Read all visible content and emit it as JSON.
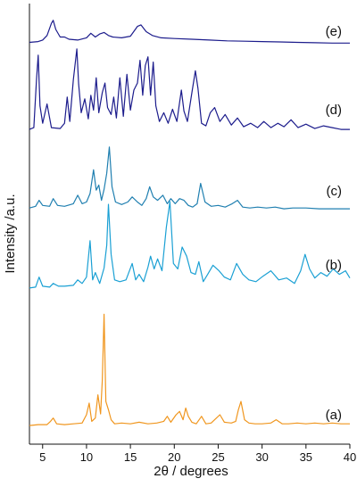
{
  "chart_data": {
    "type": "line",
    "xlabel": "2θ / degrees",
    "ylabel": "Intensity /a.u.",
    "xlim": [
      3.5,
      40
    ],
    "xticks": [
      5,
      10,
      15,
      20,
      25,
      30,
      35,
      40
    ],
    "y_axis_ticks": false,
    "grid": false,
    "legend": "none (curves labelled at right end)",
    "series": [
      {
        "label": "(e)",
        "color": "#1c1c8c",
        "x": [
          3.5,
          4.5,
          5.0,
          5.5,
          6.0,
          6.2,
          6.5,
          7.0,
          7.5,
          8.0,
          9.0,
          10.0,
          10.5,
          11.0,
          11.5,
          12.0,
          12.5,
          13.0,
          14.0,
          15.0,
          15.8,
          16.2,
          16.8,
          17.5,
          18.5,
          20.0,
          22.0,
          24.0,
          26.0,
          28.0,
          30.0,
          32.0,
          34.0,
          36.0,
          38.0,
          40.0
        ],
        "y": [
          3,
          4,
          6,
          12,
          28,
          32,
          20,
          10,
          10,
          7,
          6,
          9,
          15,
          10,
          14,
          16,
          12,
          10,
          9,
          11,
          24,
          26,
          17,
          12,
          9,
          8,
          7,
          6,
          5,
          4.5,
          4,
          3.5,
          3,
          2.5,
          2,
          2
        ]
      },
      {
        "label": "(d)",
        "color": "#1c1c8c",
        "x": [
          3.5,
          4.0,
          4.3,
          4.5,
          4.7,
          5.0,
          5.5,
          6.0,
          7.0,
          7.5,
          7.8,
          8.1,
          8.5,
          8.9,
          9.1,
          9.4,
          9.8,
          10.2,
          10.5,
          10.8,
          11.1,
          11.4,
          11.8,
          12.1,
          12.4,
          12.8,
          13.1,
          13.4,
          13.8,
          14.2,
          14.6,
          15.0,
          15.4,
          15.8,
          16.1,
          16.4,
          16.7,
          17.0,
          17.3,
          17.6,
          17.9,
          18.3,
          18.8,
          19.3,
          19.8,
          20.3,
          20.8,
          21.1,
          21.5,
          22.0,
          22.4,
          22.7,
          23.1,
          23.6,
          24.1,
          24.6,
          25.2,
          25.8,
          26.5,
          27.2,
          27.9,
          28.7,
          29.5,
          30.2,
          31.0,
          31.8,
          32.5,
          33.3,
          34.1,
          35.0,
          36.0,
          37.0,
          38.0,
          39.0,
          40.0
        ],
        "y": [
          3,
          5,
          60,
          88,
          30,
          10,
          32,
          5,
          4,
          10,
          40,
          12,
          60,
          95,
          55,
          22,
          38,
          15,
          42,
          25,
          62,
          22,
          45,
          56,
          28,
          20,
          40,
          16,
          62,
          18,
          66,
          25,
          48,
          56,
          82,
          42,
          76,
          86,
          42,
          80,
          30,
          12,
          22,
          10,
          26,
          12,
          48,
          24,
          12,
          45,
          70,
          50,
          10,
          7,
          22,
          28,
          12,
          20,
          8,
          16,
          6,
          10,
          5,
          12,
          5,
          10,
          6,
          14,
          5,
          9,
          4,
          7,
          5,
          3,
          3
        ]
      },
      {
        "label": "(c)",
        "color": "#1f7fb0",
        "x": [
          3.5,
          4.2,
          4.6,
          5.0,
          5.8,
          6.2,
          6.7,
          7.5,
          8.5,
          9.0,
          9.5,
          10.0,
          10.4,
          10.8,
          11.1,
          11.4,
          11.7,
          12.0,
          12.3,
          12.6,
          12.9,
          13.3,
          14.0,
          14.7,
          15.2,
          15.8,
          16.3,
          16.8,
          17.2,
          17.6,
          18.1,
          18.7,
          19.2,
          19.6,
          20.1,
          20.6,
          21.1,
          21.6,
          22.1,
          22.6,
          23.0,
          23.5,
          24.2,
          25.0,
          25.8,
          26.6,
          27.2,
          27.8,
          28.6,
          29.5,
          30.5,
          31.5,
          32.5,
          33.5,
          35.0,
          36.5,
          38.0,
          40.0
        ],
        "y": [
          3,
          5,
          12,
          6,
          5,
          14,
          6,
          5,
          8,
          18,
          8,
          10,
          20,
          48,
          24,
          30,
          12,
          25,
          44,
          75,
          28,
          10,
          7,
          10,
          16,
          10,
          6,
          14,
          28,
          16,
          12,
          18,
          8,
          14,
          8,
          14,
          12,
          6,
          4,
          8,
          32,
          10,
          5,
          6,
          4,
          8,
          12,
          4,
          3,
          4,
          3,
          4,
          2,
          3,
          3,
          2,
          2,
          2
        ]
      },
      {
        "label": "(b)",
        "color": "#1aa0d4",
        "x": [
          3.5,
          4.2,
          4.6,
          5.0,
          5.8,
          6.2,
          6.8,
          7.5,
          8.5,
          9.0,
          9.5,
          10.0,
          10.4,
          10.7,
          11.0,
          11.5,
          12.0,
          12.3,
          12.5,
          12.8,
          13.2,
          13.8,
          14.5,
          15.2,
          15.6,
          16.0,
          16.5,
          17.0,
          17.3,
          17.7,
          18.1,
          18.6,
          19.1,
          19.5,
          19.9,
          20.4,
          20.9,
          21.4,
          21.9,
          22.4,
          22.8,
          23.3,
          23.8,
          24.4,
          25.1,
          25.7,
          26.4,
          27.1,
          27.8,
          28.5,
          29.3,
          30.1,
          31.0,
          31.9,
          32.8,
          33.7,
          34.4,
          34.9,
          35.4,
          36.0,
          36.7,
          37.4,
          38.1,
          38.8,
          39.5,
          40.0
        ],
        "y": [
          3,
          4,
          15,
          5,
          4,
          8,
          5,
          5,
          6,
          12,
          8,
          15,
          55,
          12,
          20,
          8,
          25,
          50,
          95,
          40,
          12,
          10,
          12,
          30,
          12,
          18,
          10,
          26,
          38,
          24,
          35,
          22,
          70,
          98,
          30,
          24,
          48,
          38,
          20,
          18,
          32,
          10,
          18,
          28,
          22,
          15,
          12,
          30,
          18,
          12,
          10,
          16,
          22,
          12,
          14,
          8,
          22,
          40,
          24,
          14,
          20,
          16,
          24,
          18,
          22,
          14
        ]
      },
      {
        "label": "(a)",
        "color": "#f0961e",
        "x": [
          3.5,
          4.5,
          5.5,
          5.9,
          6.2,
          6.6,
          7.5,
          8.5,
          9.5,
          10.0,
          10.3,
          10.6,
          11.0,
          11.3,
          11.6,
          11.8,
          12.0,
          12.2,
          12.5,
          12.8,
          13.2,
          14.0,
          15.0,
          16.0,
          17.0,
          18.0,
          18.8,
          19.2,
          19.6,
          20.2,
          20.6,
          21.0,
          21.3,
          21.6,
          22.0,
          22.5,
          23.1,
          23.6,
          24.2,
          24.8,
          25.2,
          25.7,
          26.5,
          27.0,
          27.3,
          27.6,
          28.0,
          28.5,
          29.2,
          30.0,
          31.0,
          31.6,
          32.3,
          33.0,
          34.0,
          35.0,
          36.0,
          37.0,
          38.0,
          39.0,
          40.0
        ],
        "y": [
          1,
          2,
          2,
          6,
          10,
          3,
          2,
          3,
          4,
          14,
          28,
          6,
          10,
          38,
          15,
          55,
          135,
          30,
          20,
          8,
          3,
          4,
          3,
          5,
          3,
          4,
          6,
          12,
          5,
          14,
          18,
          8,
          22,
          12,
          5,
          3,
          12,
          3,
          4,
          10,
          14,
          5,
          4,
          6,
          20,
          30,
          8,
          4,
          3,
          3,
          4,
          8,
          3,
          3,
          4,
          3,
          4,
          3,
          4,
          3,
          3
        ]
      }
    ]
  }
}
